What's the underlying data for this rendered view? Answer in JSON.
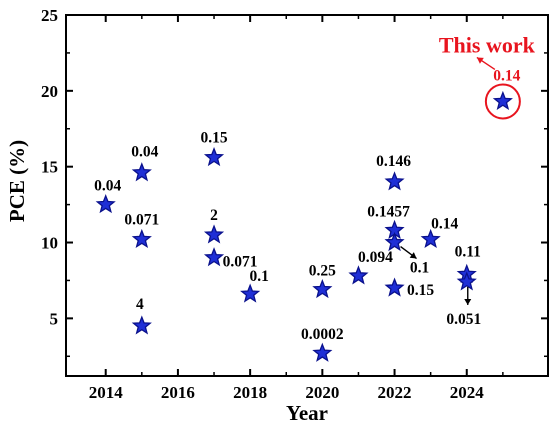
{
  "chart_data": {
    "type": "scatter",
    "title": "",
    "xlabel": "Year",
    "ylabel": "PCE (%)",
    "xlim": [
      2012.9,
      2026.25
    ],
    "ylim": [
      1.2,
      25
    ],
    "xticks": [
      "2014",
      "2016",
      "2018",
      "2020",
      "2022",
      "2024"
    ],
    "yticks": [
      "5",
      "10",
      "15",
      "20",
      "25"
    ],
    "grid": false,
    "marker": "star",
    "colors": {
      "marker_fill": "#1f2fd6",
      "marker_stroke": "#0a118c",
      "highlight": "#e8141e",
      "text": "#000000"
    },
    "series": [
      {
        "points": [
          {
            "x": 2014,
            "y": 12.5,
            "label": "0.04"
          },
          {
            "x": 2015,
            "y": 14.6,
            "label": "0.04"
          },
          {
            "x": 2015,
            "y": 10.2,
            "label": "0.071"
          },
          {
            "x": 2015,
            "y": 4.5,
            "label": "4"
          },
          {
            "x": 2017,
            "y": 15.6,
            "label": "0.15"
          },
          {
            "x": 2017,
            "y": 10.5,
            "label": "2"
          },
          {
            "x": 2017,
            "y": 9.0,
            "label": "0.071"
          },
          {
            "x": 2018,
            "y": 6.6,
            "label": "0.1"
          },
          {
            "x": 2020,
            "y": 6.9,
            "label": "0.25"
          },
          {
            "x": 2020,
            "y": 2.7,
            "label": "0.0002"
          },
          {
            "x": 2021,
            "y": 7.8,
            "label": "0.094"
          },
          {
            "x": 2022,
            "y": 14.0,
            "label": "0.146"
          },
          {
            "x": 2022,
            "y": 10.8,
            "label": "0.1457"
          },
          {
            "x": 2022,
            "y": 10.0,
            "label": "0.1"
          },
          {
            "x": 2022,
            "y": 7.0,
            "label": "0.15"
          },
          {
            "x": 2023,
            "y": 10.2,
            "label": "0.14"
          },
          {
            "x": 2024,
            "y": 7.9,
            "label": "0.11"
          },
          {
            "x": 2024,
            "y": 7.4,
            "label": "0.051"
          }
        ]
      }
    ],
    "highlight": {
      "x": 2025,
      "y": 19.3,
      "label": "0.14",
      "annotation": "This work"
    }
  }
}
